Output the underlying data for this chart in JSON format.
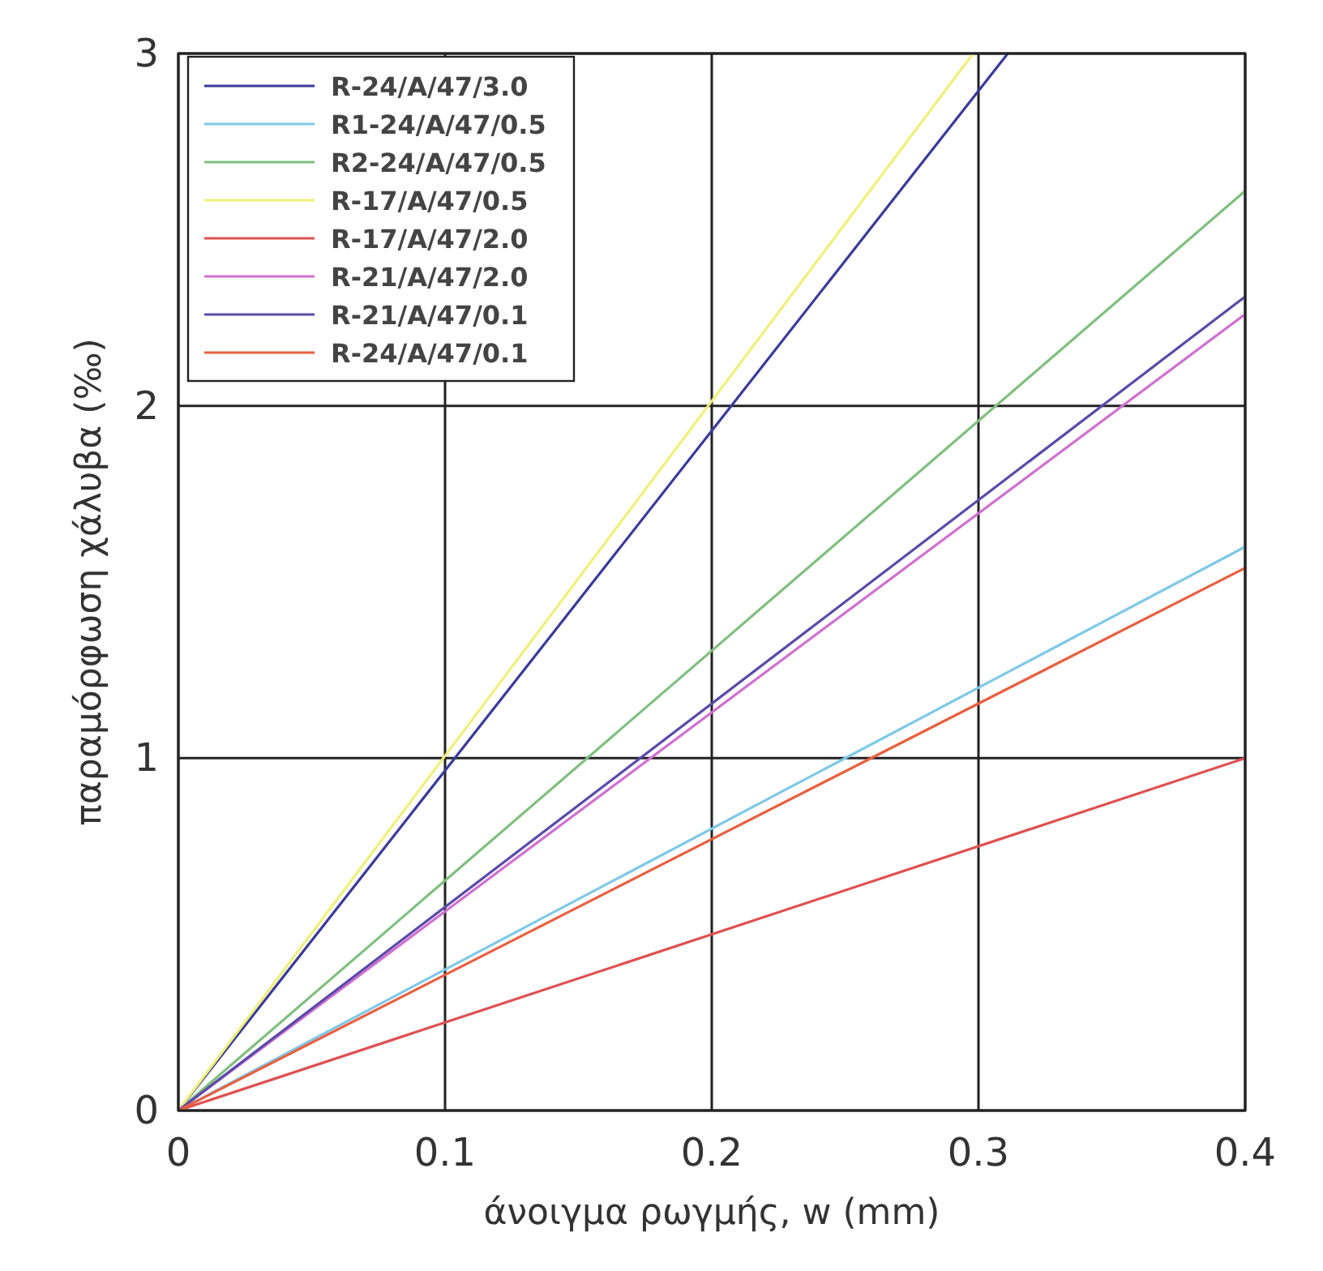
{
  "chart_data": {
    "type": "line",
    "xlabel": "άνοιγμα ρωγμής, w (mm)",
    "ylabel": "παραμόρφωση χάλυβα (‰)",
    "xlim": [
      0,
      0.4
    ],
    "ylim": [
      0,
      3
    ],
    "xticks": [
      0,
      0.1,
      0.2,
      0.3,
      0.4
    ],
    "yticks": [
      0,
      1,
      2,
      3
    ],
    "grid": true,
    "legend": "top left",
    "marker": "none",
    "line_style": "solid",
    "series": [
      {
        "name": "R-24/A/47/3.0",
        "color": "#3a3a9a",
        "x": [
          0,
          0.311
        ],
        "values": [
          0,
          3
        ]
      },
      {
        "name": "R1-24/A/47/0.5",
        "color": "#7ec8e8",
        "x": [
          0,
          0.4
        ],
        "values": [
          0,
          1.6
        ]
      },
      {
        "name": "R2-24/A/47/0.5",
        "color": "#7fbf7f",
        "x": [
          0,
          0.4
        ],
        "values": [
          0,
          2.61
        ]
      },
      {
        "name": "R-17/A/47/0.5",
        "color": "#eef07a",
        "x": [
          0,
          0.298
        ],
        "values": [
          0,
          3
        ]
      },
      {
        "name": "R-17/A/47/2.0",
        "color": "#e05050",
        "x": [
          0,
          0.4
        ],
        "values": [
          0,
          1.0
        ]
      },
      {
        "name": "R-21/A/47/2.0",
        "color": "#d070d0",
        "x": [
          0,
          0.4
        ],
        "values": [
          0,
          2.26
        ]
      },
      {
        "name": "R-21/A/47/0.1",
        "color": "#5a4aa8",
        "x": [
          0,
          0.4
        ],
        "values": [
          0,
          2.31
        ]
      },
      {
        "name": "R-24/A/47/0.1",
        "color": "#e86040",
        "x": [
          0,
          0.4
        ],
        "values": [
          0,
          1.54
        ]
      }
    ]
  }
}
